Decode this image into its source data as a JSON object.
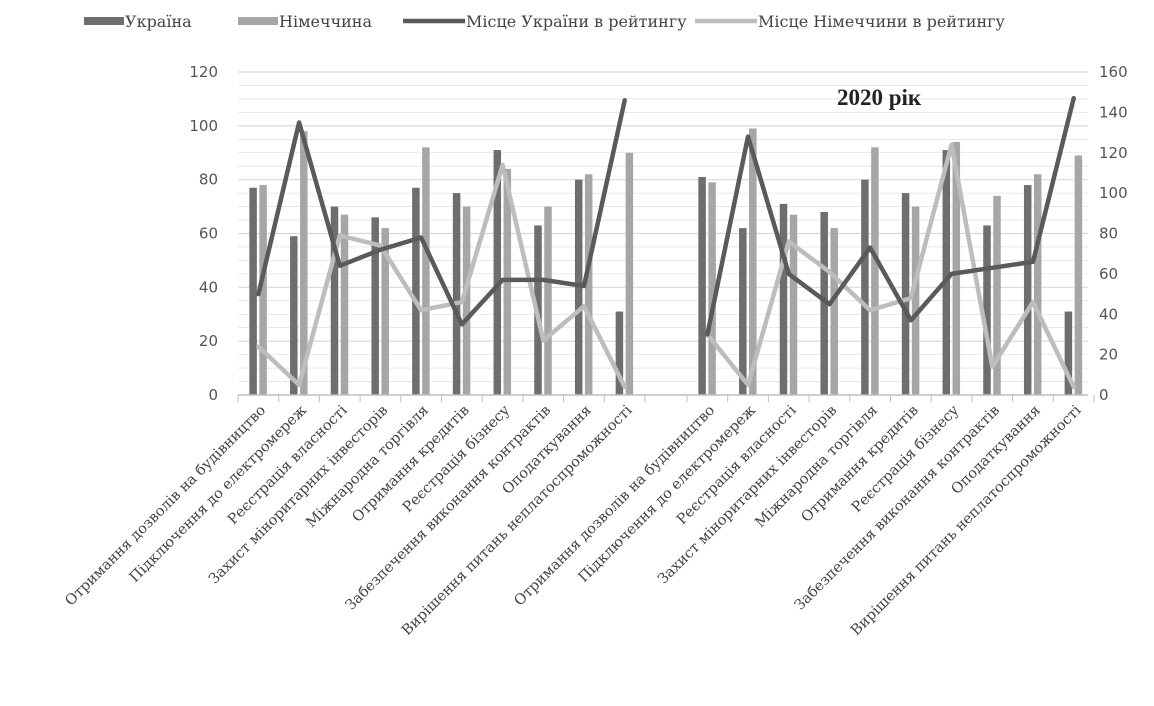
{
  "chart_data": {
    "type": "bar",
    "annotation": "2020 рік",
    "legend_position": "top",
    "grid": true,
    "colors": {
      "ukraine_bar": "#6e6e6e",
      "germany_bar": "#a6a6a6",
      "ukraine_line": "#5a5a5a",
      "germany_line": "#bdbdbd",
      "grid": "#d9d9d9",
      "axis": "#bfbfbf"
    },
    "legend": [
      {
        "key": "ukraine",
        "label": "Україна",
        "kind": "bar"
      },
      {
        "key": "germany",
        "label": "Німеччина",
        "kind": "bar"
      },
      {
        "key": "ukraine_rank",
        "label": "Місце України в рейтингу",
        "kind": "line"
      },
      {
        "key": "germany_rank",
        "label": "Місце Німеччини в рейтингу",
        "kind": "line"
      }
    ],
    "y_left": {
      "min": 0,
      "max": 120,
      "ticks": [
        "0",
        "20",
        "40",
        "60",
        "80",
        "100",
        "120"
      ]
    },
    "y_right": {
      "min": 0,
      "max": 160,
      "ticks": [
        "0",
        "20",
        "40",
        "60",
        "80",
        "100",
        "120",
        "140",
        "160"
      ]
    },
    "groups": [
      {
        "categories": [
          "Отримання дозволів на будівництво",
          "Підключення до електромереж",
          "Реєстрація власності",
          "Захист міноритарних інвесторів",
          "Міжнародна торгівля",
          "Отримання кредитів",
          "Реєстрація бізнесу",
          "Забезпечення виконання контрактів",
          "Оподаткування",
          "Вирішення питань неплатоспроможності"
        ],
        "series": [
          {
            "key": "ukraine",
            "axis": "left",
            "values": [
              77,
              59,
              70,
              66,
              77,
              75,
              91,
              63,
              80,
              31
            ]
          },
          {
            "key": "germany",
            "axis": "left",
            "values": [
              78,
              98,
              67,
              62,
              92,
              70,
              84,
              70,
              82,
              90
            ]
          },
          {
            "key": "ukraine_rank",
            "axis": "right",
            "values": [
              50,
              135,
              64,
              72,
              78,
              35,
              57,
              57,
              54,
              146
            ]
          },
          {
            "key": "germany_rank",
            "axis": "right",
            "values": [
              24,
              5,
              79,
              74,
              42,
              46,
              114,
              27,
              44,
              4
            ]
          }
        ]
      },
      {
        "categories": [
          "Отримання дозволів на будівництво",
          "Підключення до електромереж",
          "Реєстрація власності",
          "Захист міноритарних інвесторів",
          "Міжнародна торгівля",
          "Отримання кредитів",
          "Реєстрація бізнесу",
          "Забезпечення виконання контрактів",
          "Оподаткування",
          "Вирішення питань неплатоспроможності"
        ],
        "series": [
          {
            "key": "ukraine",
            "axis": "left",
            "values": [
              81,
              62,
              71,
              68,
              80,
              75,
              91,
              63,
              78,
              31
            ]
          },
          {
            "key": "germany",
            "axis": "left",
            "values": [
              79,
              99,
              67,
              62,
              92,
              70,
              94,
              74,
              82,
              89
            ]
          },
          {
            "key": "ukraine_rank",
            "axis": "right",
            "values": [
              30,
              128,
              60,
              45,
              73,
              37,
              60,
              63,
              66,
              147
            ]
          },
          {
            "key": "germany_rank",
            "axis": "right",
            "values": [
              30,
              5,
              76,
              61,
              42,
              48,
              124,
              14,
              46,
              4
            ]
          }
        ]
      }
    ]
  }
}
